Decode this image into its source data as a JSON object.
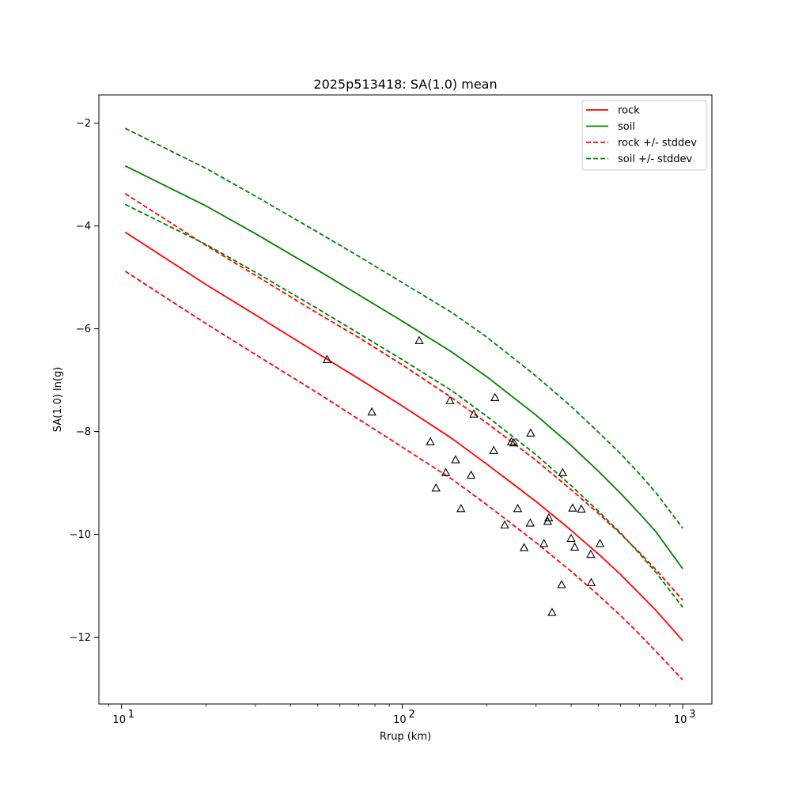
{
  "chart_data": {
    "type": "line",
    "title": "2025p513418: SA(1.0) mean",
    "xlabel": "Rrup (km)",
    "ylabel": "SA(1.0) ln(g)",
    "xscale": "log",
    "xlim": [
      8.3,
      1270
    ],
    "ylim": [
      -13.3,
      -1.45
    ],
    "xticks": [
      10,
      100,
      1000
    ],
    "xtick_labels": [
      {
        "base": "10",
        "exp": "1"
      },
      {
        "base": "10",
        "exp": "2"
      },
      {
        "base": "10",
        "exp": "3"
      }
    ],
    "yticks": [
      -2,
      -4,
      -6,
      -8,
      -10,
      -12
    ],
    "ytick_labels": [
      "−2",
      "−4",
      "−6",
      "−8",
      "−10",
      "−12"
    ],
    "grid": false,
    "legend_position": "top-right",
    "series": [
      {
        "name": "rock",
        "color": "#ff0000",
        "style": "solid",
        "x": [
          10.3,
          20,
          30,
          50,
          70,
          100,
          150,
          200,
          300,
          400,
          500,
          600,
          700,
          800,
          1000
        ],
        "y": [
          -4.12,
          -5.14,
          -5.73,
          -6.48,
          -6.97,
          -7.5,
          -8.13,
          -8.63,
          -9.36,
          -9.92,
          -10.38,
          -10.78,
          -11.15,
          -11.47,
          -12.07
        ]
      },
      {
        "name": "soil",
        "color": "#008000",
        "style": "solid",
        "x": [
          10.3,
          20,
          30,
          50,
          70,
          100,
          150,
          200,
          300,
          400,
          500,
          600,
          700,
          800,
          1000
        ],
        "y": [
          -2.83,
          -3.61,
          -4.15,
          -4.86,
          -5.34,
          -5.85,
          -6.45,
          -6.93,
          -7.68,
          -8.27,
          -8.77,
          -9.2,
          -9.59,
          -9.94,
          -10.67
        ]
      },
      {
        "name": "rock +/- stddev",
        "color": "#ff0000",
        "style": "dashed",
        "x": [
          10.3,
          20,
          30,
          50,
          70,
          100,
          150,
          200,
          300,
          400,
          500,
          600,
          700,
          800,
          1000
        ],
        "y": [
          -3.37,
          -4.38,
          -4.96,
          -5.7,
          -6.17,
          -6.7,
          -7.34,
          -7.83,
          -8.56,
          -9.13,
          -9.59,
          -9.99,
          -10.35,
          -10.68,
          -11.28
        ]
      },
      {
        "name": "rock +/- stddev",
        "color": "#ff0000",
        "style": "dashed",
        "x": [
          10.3,
          20,
          30,
          50,
          70,
          100,
          150,
          200,
          300,
          400,
          500,
          600,
          700,
          800,
          1000
        ],
        "y": [
          -4.88,
          -5.9,
          -6.5,
          -7.25,
          -7.76,
          -8.3,
          -8.92,
          -9.42,
          -10.16,
          -10.72,
          -11.18,
          -11.58,
          -11.94,
          -12.27,
          -12.83
        ]
      },
      {
        "name": "soil +/- stddev",
        "color": "#008000",
        "style": "dashed",
        "x": [
          10.3,
          20,
          30,
          50,
          70,
          100,
          150,
          200,
          300,
          400,
          500,
          600,
          700,
          800,
          1000
        ],
        "y": [
          -2.1,
          -2.88,
          -3.42,
          -4.12,
          -4.59,
          -5.1,
          -5.68,
          -6.16,
          -6.92,
          -7.51,
          -8.01,
          -8.43,
          -8.82,
          -9.18,
          -9.88
        ]
      },
      {
        "name": "soil +/- stddev",
        "color": "#008000",
        "style": "dashed",
        "x": [
          10.3,
          20,
          30,
          50,
          70,
          100,
          150,
          200,
          300,
          400,
          500,
          600,
          700,
          800,
          1000
        ],
        "y": [
          -3.58,
          -4.36,
          -4.9,
          -5.61,
          -6.09,
          -6.6,
          -7.2,
          -7.7,
          -8.45,
          -9.05,
          -9.55,
          -9.97,
          -10.37,
          -10.73,
          -11.42
        ]
      }
    ],
    "legend": [
      {
        "label": "rock",
        "color": "#ff0000",
        "style": "solid"
      },
      {
        "label": "soil",
        "color": "#008000",
        "style": "solid"
      },
      {
        "label": "rock +/- stddev",
        "color": "#ff0000",
        "style": "dashed"
      },
      {
        "label": "soil +/- stddev",
        "color": "#008000",
        "style": "dashed"
      }
    ],
    "observations": {
      "marker": "triangle",
      "x": [
        54,
        78,
        115,
        126,
        132,
        143,
        148,
        155,
        162,
        176,
        180,
        212,
        214,
        245,
        250,
        258,
        232,
        272,
        286,
        287,
        320,
        330,
        333,
        342,
        370,
        373,
        400,
        405,
        412,
        435,
        470,
        472,
        507
      ],
      "y": [
        -6.6,
        -7.62,
        -6.23,
        -8.2,
        -9.1,
        -8.8,
        -7.4,
        -8.55,
        -9.5,
        -8.85,
        -7.66,
        -8.37,
        -7.34,
        -8.2,
        -8.22,
        -9.5,
        -9.82,
        -10.26,
        -9.78,
        -8.03,
        -10.18,
        -9.75,
        -9.68,
        -11.52,
        -10.98,
        -8.8,
        -10.08,
        -9.49,
        -10.25,
        -9.51,
        -10.39,
        -10.94,
        -10.18
      ]
    }
  }
}
